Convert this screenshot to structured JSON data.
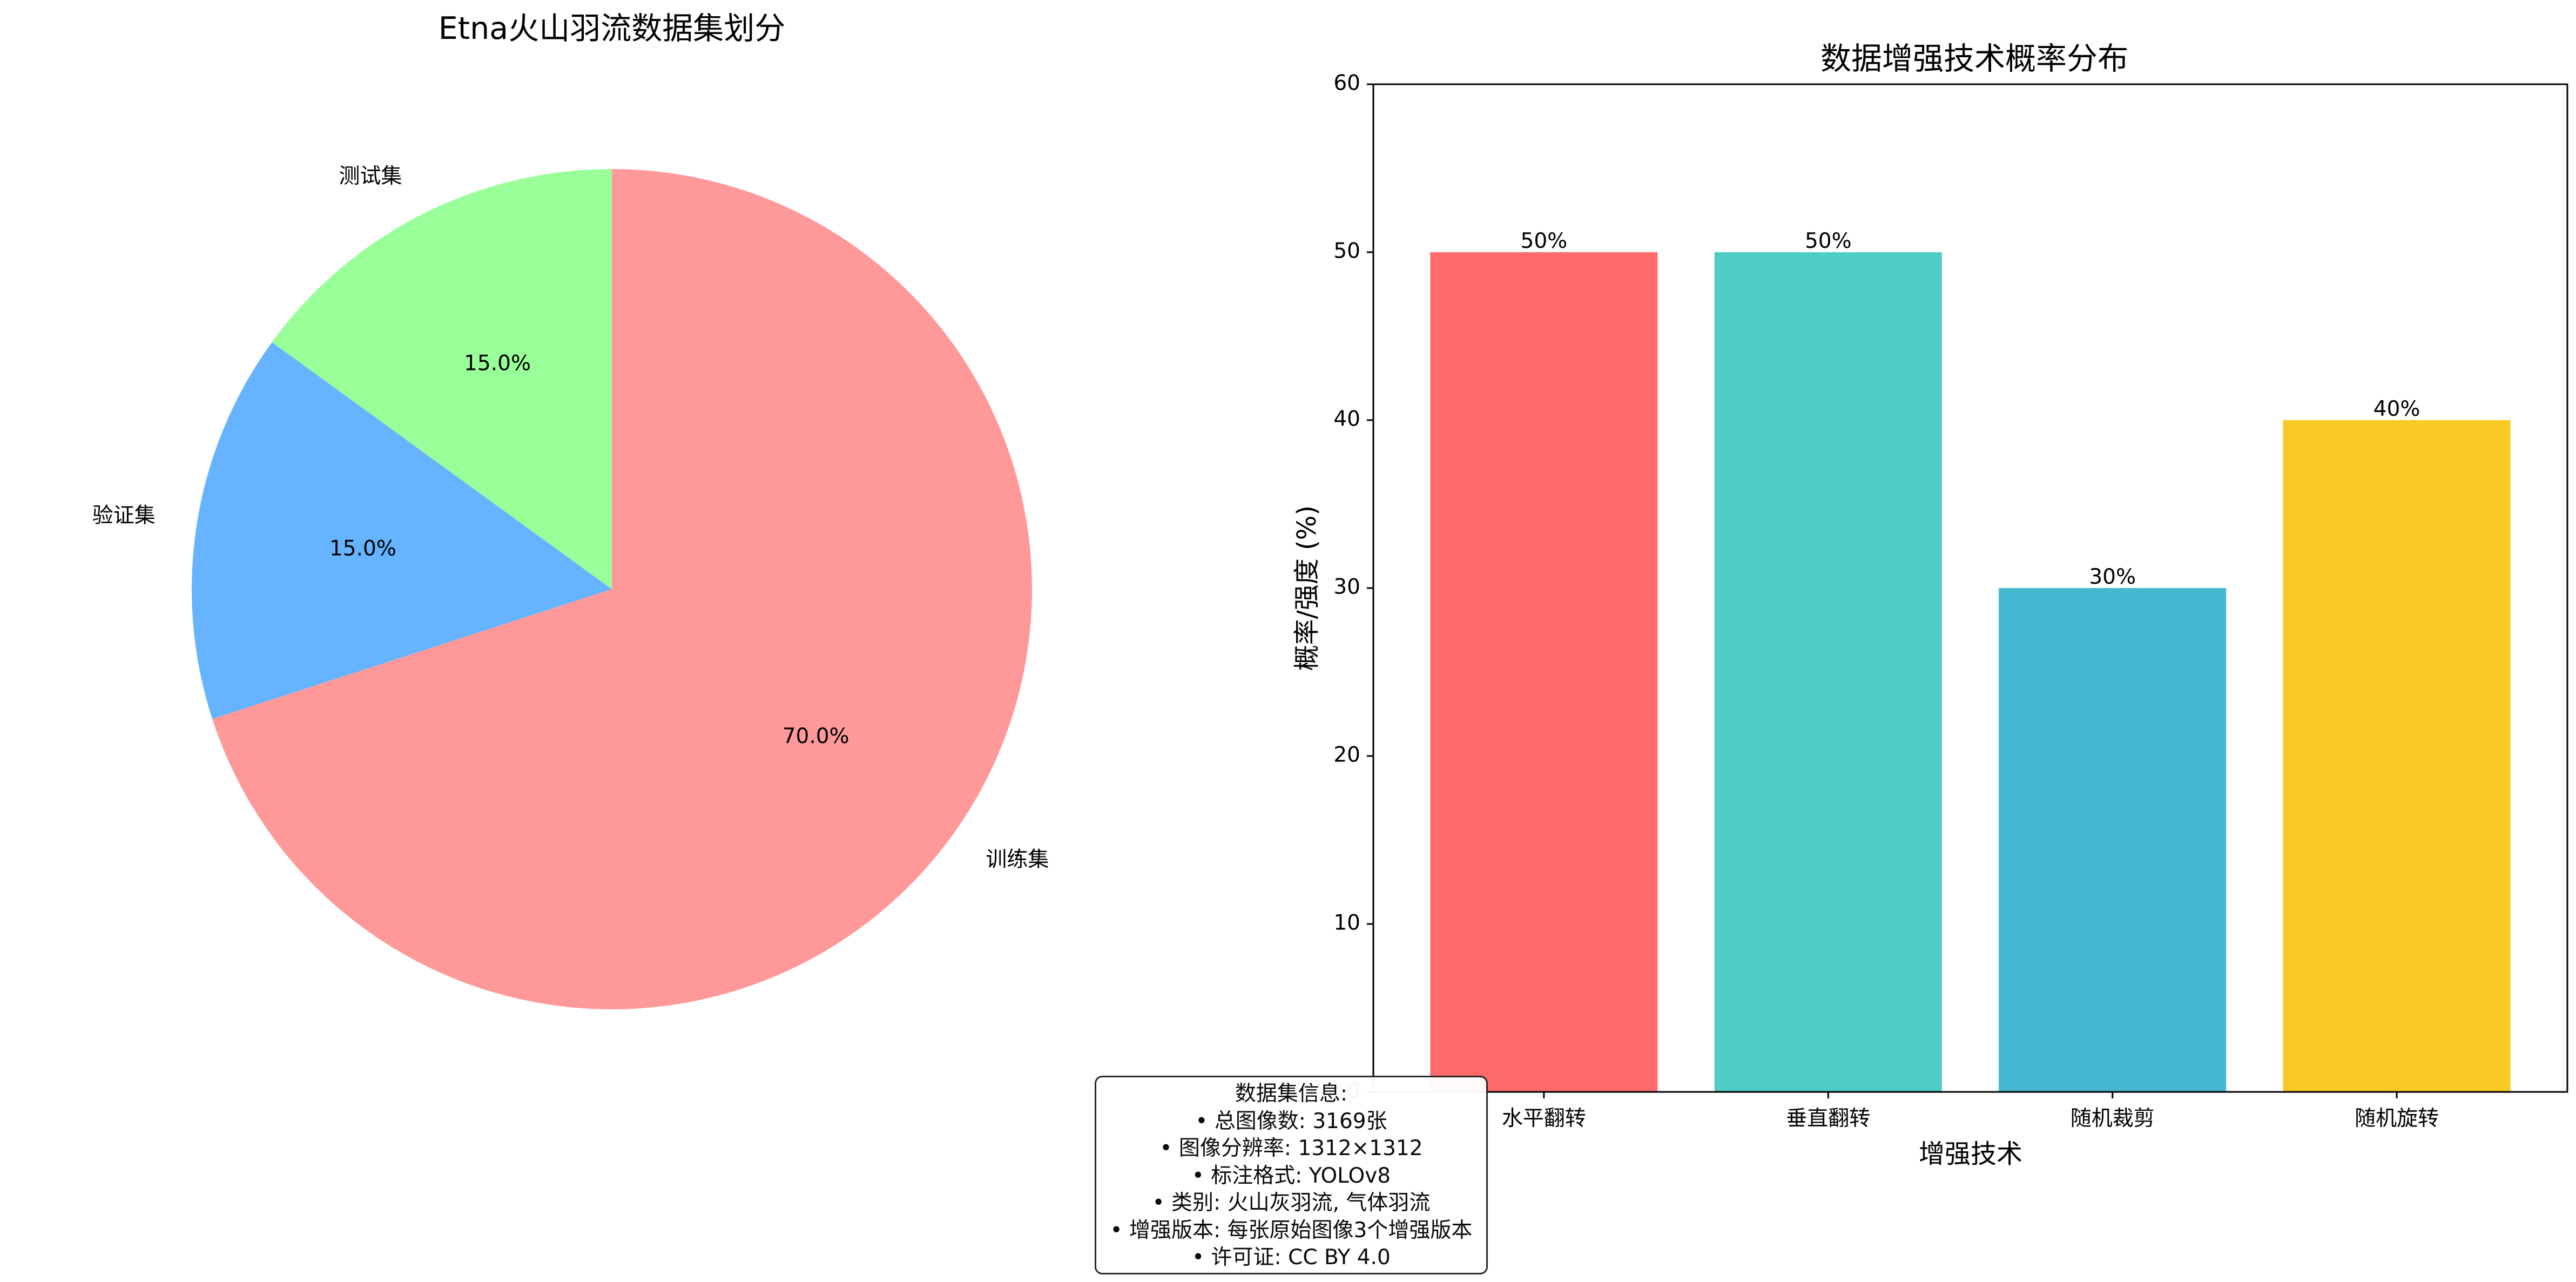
{
  "chart_data": [
    {
      "type": "pie",
      "title": "Etna火山羽流数据集划分",
      "slices": [
        {
          "label": "训练集",
          "value": 70.0,
          "pct_label": "70.0%",
          "color": "#ff9999"
        },
        {
          "label": "验证集",
          "value": 15.0,
          "pct_label": "15.0%",
          "color": "#66b3ff"
        },
        {
          "label": "测试集",
          "value": 15.0,
          "pct_label": "15.0%",
          "color": "#99ff99"
        }
      ],
      "start_angle_deg": 90,
      "direction": "clockwise"
    },
    {
      "type": "bar",
      "title": "数据增强技术概率分布",
      "categories": [
        "水平翻转",
        "垂直翻转",
        "随机裁剪",
        "随机旋转"
      ],
      "values": [
        50,
        50,
        30,
        40
      ],
      "value_labels": [
        "50%",
        "50%",
        "30%",
        "40%"
      ],
      "colors": [
        "#ff6b6b",
        "#4ecdc4",
        "#45b7d1",
        "#f9ca24"
      ],
      "xlabel": "增强技术",
      "ylabel": "概率/强度 (%)",
      "ylim": [
        0,
        60
      ],
      "yticks": [
        0,
        10,
        20,
        30,
        40,
        50,
        60
      ],
      "grid": false
    }
  ],
  "info_box": {
    "lines": [
      "数据集信息:",
      "• 总图像数: 3169张",
      "• 图像分辨率: 1312×1312",
      "• 标注格式: YOLOv8",
      "• 类别: 火山灰羽流, 气体羽流",
      "• 增强版本: 每张原始图像3个增强版本",
      "• 许可证: CC BY 4.0"
    ]
  }
}
